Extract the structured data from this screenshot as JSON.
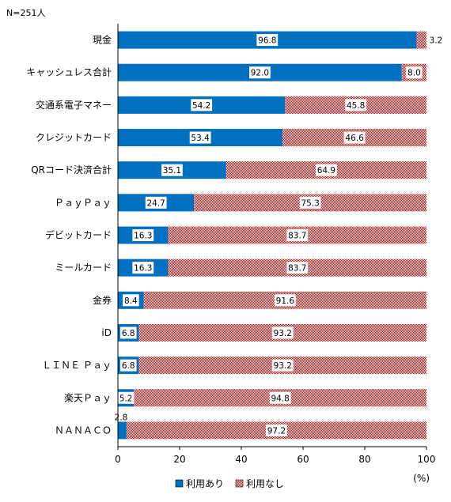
{
  "chart_data": {
    "type": "bar",
    "orientation": "horizontal",
    "stacked": true,
    "note": "N=251人",
    "unit_label": "(%)",
    "categories": [
      "現金",
      "キャッシュレス合計",
      "交通系電子マネー",
      "クレジットカード",
      "QRコード決済合計",
      "ＰａｙＰａｙ",
      "デビットカード",
      "ミールカード",
      "金券",
      "iD",
      "ＬＩＮＥ Ｐａｙ",
      "楽天Ｐａｙ",
      "ＮＡＮＡＣＯ"
    ],
    "series": [
      {
        "name": "利用あり",
        "color": "#0070C0",
        "pattern": "solid",
        "values": [
          96.8,
          92.0,
          54.2,
          53.4,
          35.1,
          24.7,
          16.3,
          16.3,
          8.4,
          6.8,
          6.8,
          5.2,
          2.8
        ],
        "labels": [
          "96.8",
          "92.0",
          "54.2",
          "53.4",
          "35.1",
          "24.7",
          "16.3",
          "16.3",
          "8.4",
          "6.8",
          "6.8",
          "5.2",
          "2.8"
        ]
      },
      {
        "name": "利用なし",
        "color": "#FF0000",
        "pattern": "checker",
        "values": [
          3.2,
          8.0,
          45.8,
          46.6,
          64.9,
          75.3,
          83.7,
          83.7,
          91.6,
          93.2,
          93.2,
          94.8,
          97.2
        ],
        "labels": [
          "3.2",
          "8.0",
          "45.8",
          "46.6",
          "64.9",
          "75.3",
          "83.7",
          "83.7",
          "91.6",
          "93.2",
          "93.2",
          "94.8",
          "97.2"
        ]
      }
    ],
    "xlim": [
      0,
      100
    ],
    "xticks": [
      "0",
      "20",
      "40",
      "60",
      "80",
      "100"
    ],
    "grid": false,
    "legend_position": "bottom-center"
  }
}
